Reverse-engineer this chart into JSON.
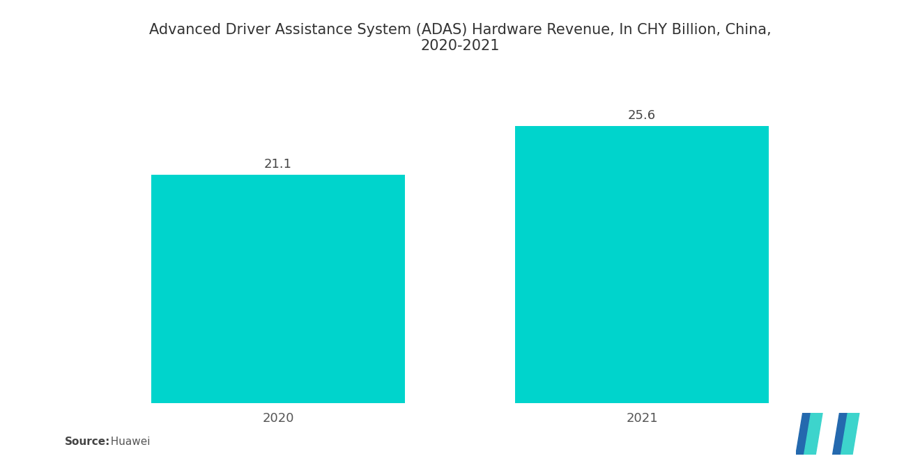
{
  "title": "Advanced Driver Assistance System (ADAS) Hardware Revenue, In CHY Billion, China,\n2020-2021",
  "categories": [
    "2020",
    "2021"
  ],
  "values": [
    21.1,
    25.6
  ],
  "bar_color": "#00D4CC",
  "bar_width": 0.32,
  "value_labels": [
    "21.1",
    "25.6"
  ],
  "source_bold": "Source:",
  "source_normal": "  Huawei",
  "ylim": [
    0,
    30
  ],
  "title_fontsize": 15,
  "tick_fontsize": 13,
  "source_fontsize": 11,
  "background_color": "#ffffff",
  "value_label_fontsize": 13,
  "x_positions": [
    0.27,
    0.73
  ]
}
